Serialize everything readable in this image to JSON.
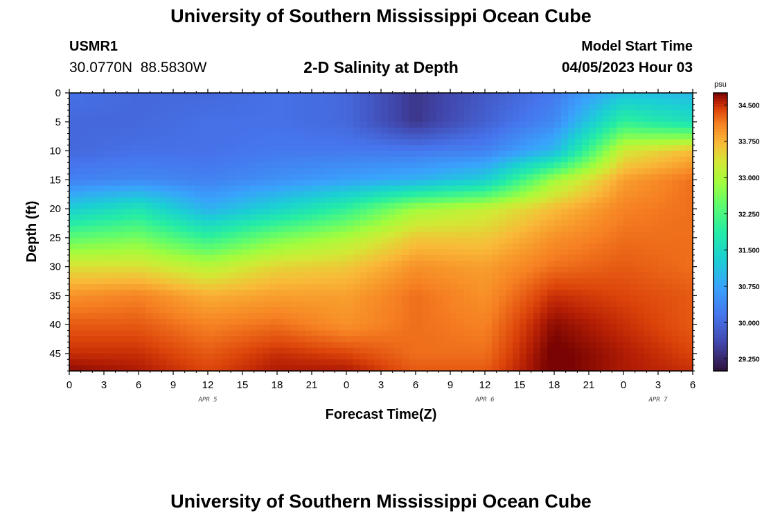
{
  "header": {
    "title": "University of Southern Mississippi Ocean Cube",
    "station_id": "USMR1",
    "coordinates": "30.0770N  88.5830W",
    "plot_title": "2-D Salinity at Depth",
    "model_label": "Model Start Time",
    "model_time": "04/05/2023 Hour 03"
  },
  "footer": {
    "title": "University of Southern Mississippi Ocean Cube"
  },
  "chart_data": {
    "type": "heatmap",
    "title": "2-D Salinity at Depth",
    "xlabel": "Forecast Time(Z)",
    "ylabel": "Depth (ft)",
    "x_unit": "forecast hour",
    "x_range": [
      0,
      54
    ],
    "x_tick_labels": [
      "0",
      "3",
      "6",
      "9",
      "12",
      "15",
      "18",
      "21",
      "0",
      "3",
      "6",
      "9",
      "12",
      "15",
      "18",
      "21",
      "0",
      "3",
      "6"
    ],
    "x_date_labels": [
      {
        "label": "APR 5",
        "at_hour": 12
      },
      {
        "label": "APR 6",
        "at_hour": 36
      },
      {
        "label": "APR 7",
        "at_hour": 51
      }
    ],
    "y_range": [
      0,
      48
    ],
    "y_ticks": [
      0,
      5,
      10,
      15,
      20,
      25,
      30,
      35,
      40,
      45
    ],
    "colorbar": {
      "unit": "psu",
      "min": 29.0,
      "max": 34.75,
      "ticks": [
        "34.500",
        "33.750",
        "33.000",
        "32.250",
        "31.500",
        "30.750",
        "30.000",
        "29.250"
      ],
      "tick_values": [
        34.5,
        33.75,
        33.0,
        32.25,
        31.5,
        30.75,
        30.0,
        29.25
      ]
    },
    "grid_x_hours": [
      0,
      6,
      12,
      18,
      24,
      30,
      36,
      42,
      48,
      54
    ],
    "grid_depths_ft": [
      0,
      5,
      10,
      15,
      20,
      25,
      30,
      35,
      40,
      45,
      48
    ],
    "salinity_psu": [
      [
        30.1,
        30.0,
        30.0,
        30.1,
        30.0,
        29.4,
        29.8,
        30.2,
        31.1,
        31.0
      ],
      [
        30.0,
        30.0,
        30.1,
        30.1,
        30.0,
        29.4,
        29.9,
        30.4,
        32.0,
        31.6
      ],
      [
        30.0,
        30.1,
        30.1,
        30.2,
        30.2,
        30.2,
        30.3,
        31.0,
        33.3,
        33.7
      ],
      [
        30.3,
        30.4,
        30.3,
        30.5,
        30.7,
        30.9,
        31.3,
        32.9,
        33.9,
        34.2
      ],
      [
        31.3,
        31.7,
        30.9,
        31.4,
        32.0,
        32.9,
        33.2,
        33.7,
        34.1,
        34.2
      ],
      [
        32.4,
        32.6,
        32.0,
        32.6,
        33.0,
        33.6,
        33.6,
        34.0,
        34.2,
        34.2
      ],
      [
        33.4,
        33.4,
        33.1,
        33.5,
        33.6,
        34.0,
        33.9,
        34.2,
        34.3,
        34.2
      ],
      [
        34.0,
        34.1,
        33.8,
        33.9,
        33.9,
        34.2,
        34.0,
        34.5,
        34.4,
        34.3
      ],
      [
        34.3,
        34.3,
        34.1,
        34.2,
        34.0,
        34.2,
        34.1,
        34.7,
        34.5,
        34.3
      ],
      [
        34.5,
        34.5,
        34.3,
        34.5,
        34.4,
        34.2,
        34.2,
        34.8,
        34.6,
        34.4
      ],
      [
        34.7,
        34.6,
        34.4,
        34.6,
        34.6,
        34.3,
        34.3,
        34.8,
        34.6,
        34.5
      ]
    ]
  }
}
